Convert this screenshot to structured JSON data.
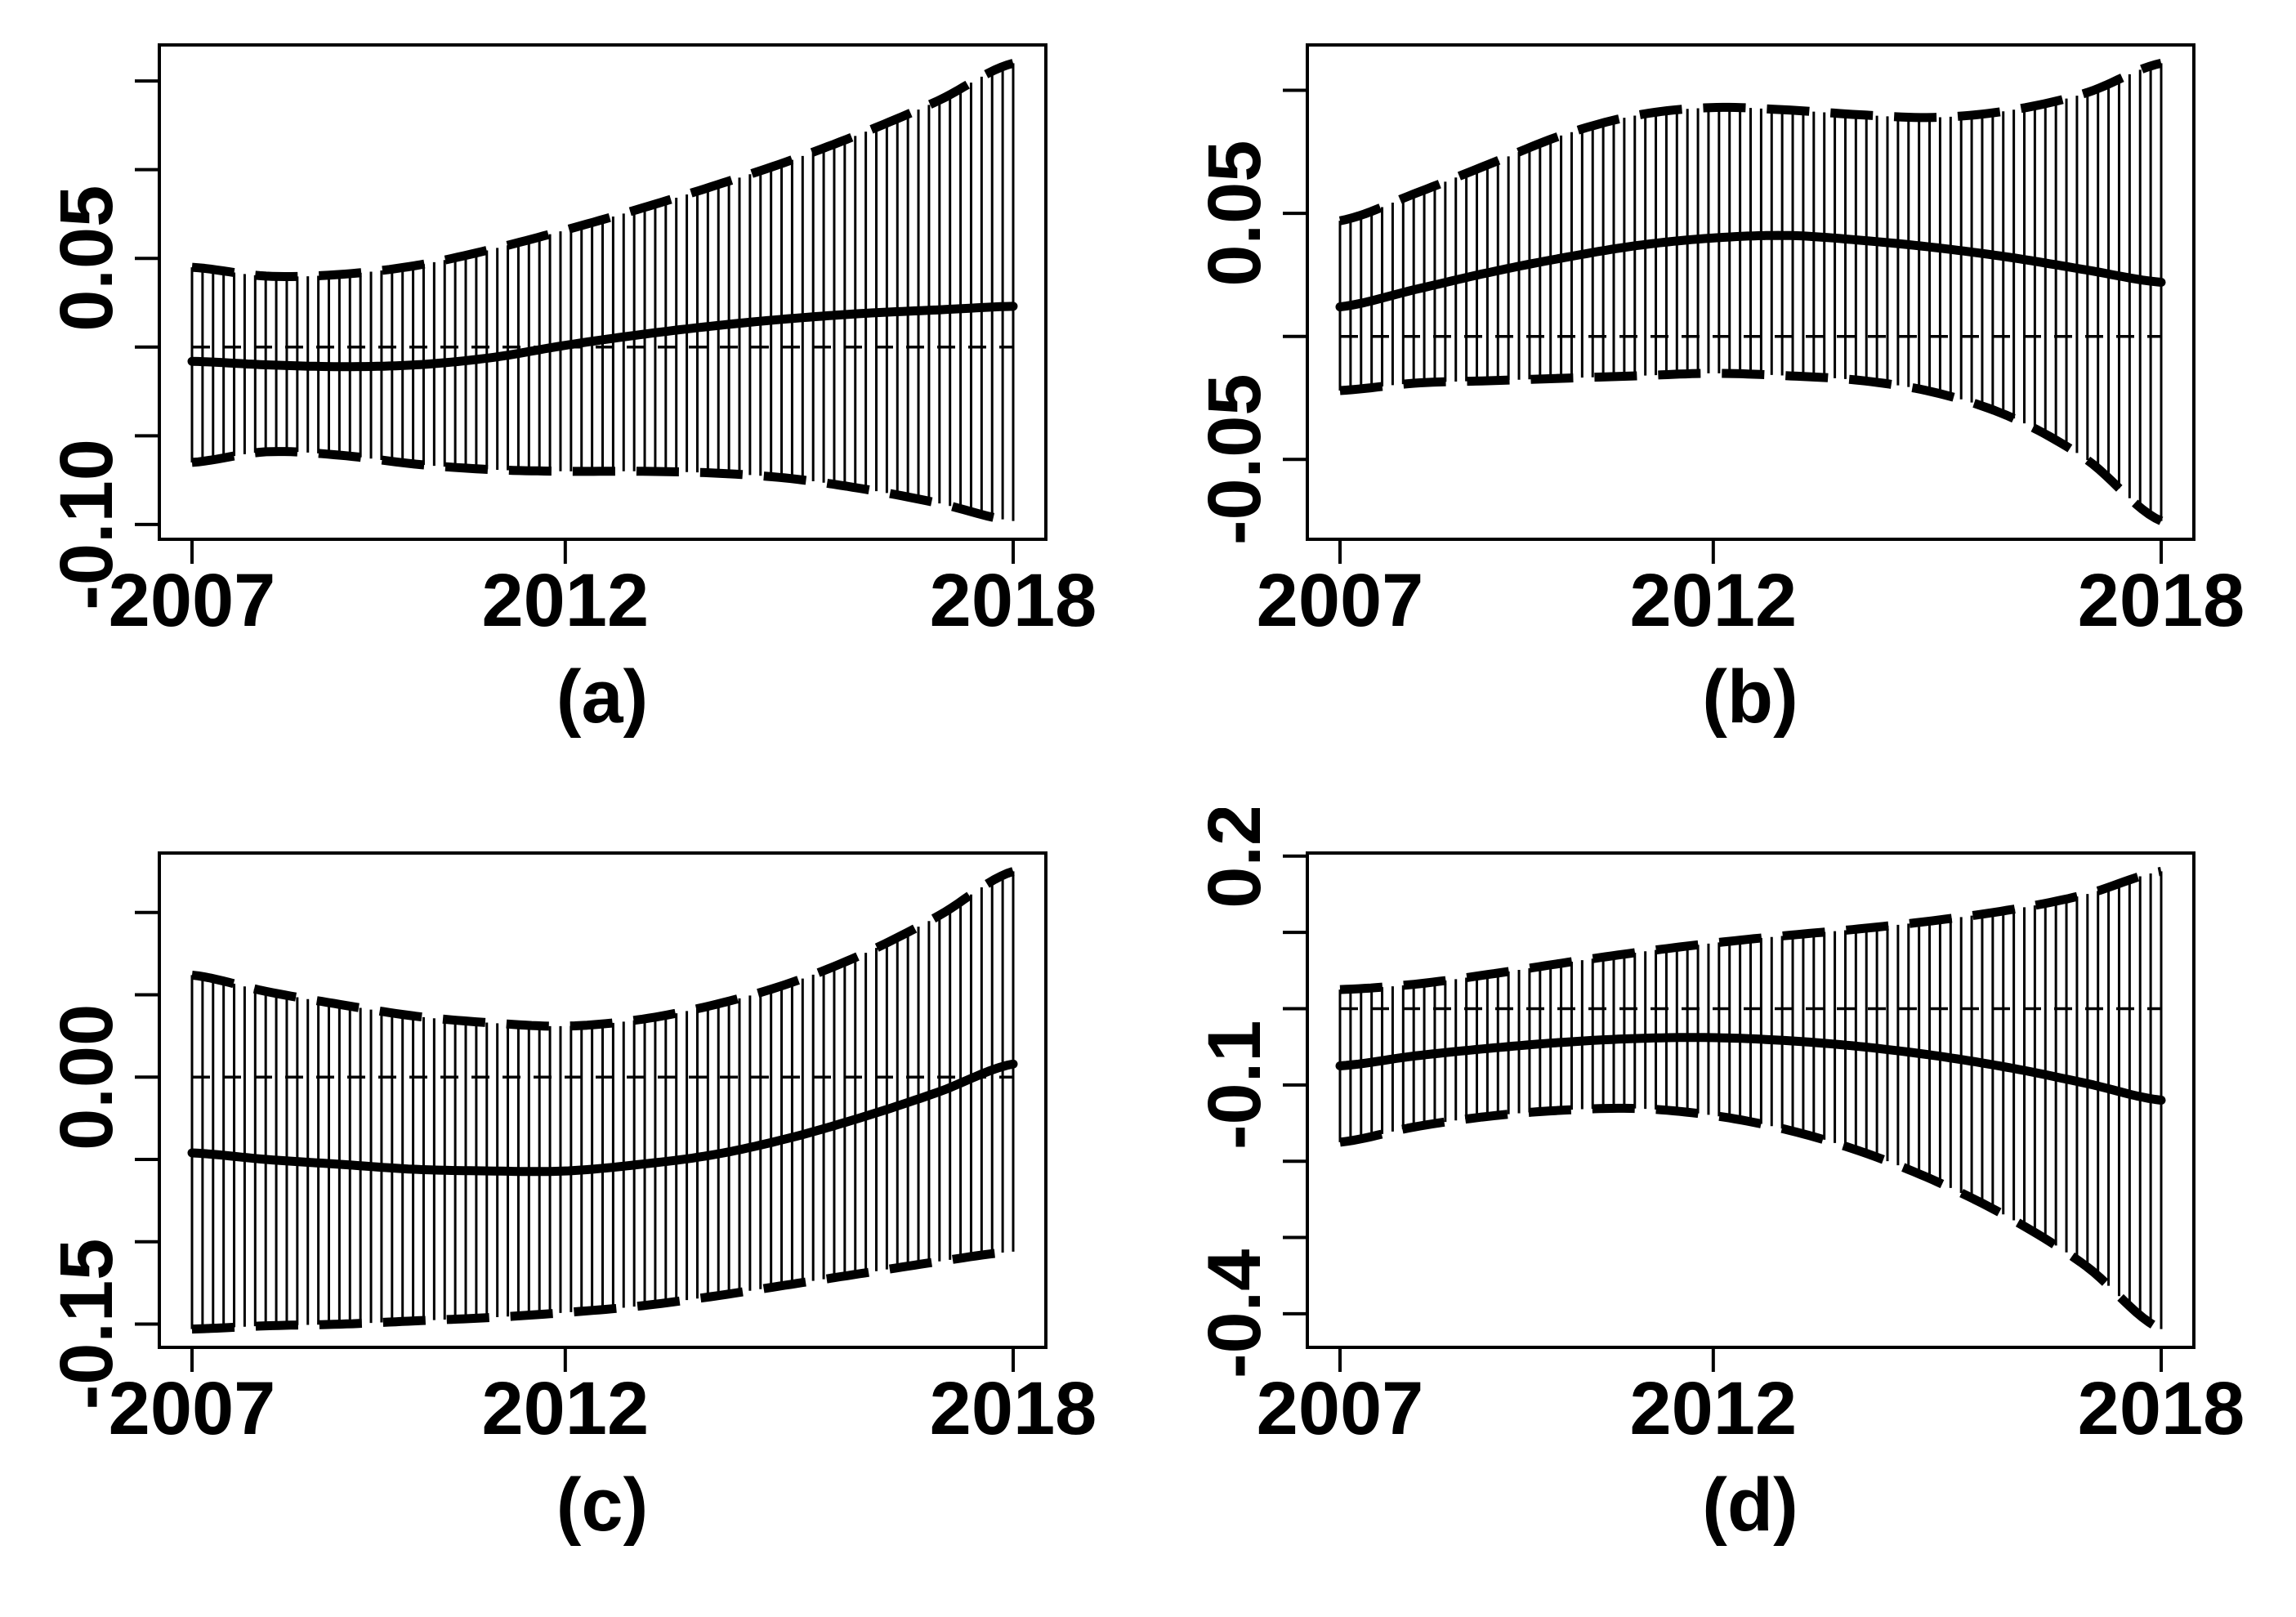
{
  "figure": {
    "background": "#ffffff",
    "ink": "#000000",
    "rows": 2,
    "columns": 2,
    "x_axis_years": [
      2007,
      2012,
      2018
    ]
  },
  "chart_data": [
    {
      "id": "a",
      "caption": "(a)",
      "type": "line",
      "x": [
        2007,
        2008,
        2009,
        2010,
        2011,
        2012,
        2013,
        2014,
        2015,
        2016,
        2017,
        2018
      ],
      "x_ticks": [
        {
          "year": 2007,
          "label": "2007"
        },
        {
          "year": 2012,
          "label": "2012"
        },
        {
          "year": 2018,
          "label": "2018"
        }
      ],
      "y_ticks": [
        0.15,
        0.1,
        0.05,
        0,
        -0.05,
        -0.1
      ],
      "y_tick_labels": [
        {
          "value": 0.05,
          "label": "0.05"
        },
        {
          "value": -0.1,
          "label": "-0.10"
        }
      ],
      "reference_y": 0,
      "series": [
        {
          "name": "estimate",
          "style": "solid-bold",
          "values": [
            -0.008,
            -0.01,
            -0.011,
            -0.01,
            -0.006,
            0.001,
            0.007,
            0.012,
            0.016,
            0.019,
            0.021,
            0.023
          ]
        },
        {
          "name": "upper-ci",
          "style": "dashed-bold",
          "values": [
            0.045,
            0.04,
            0.041,
            0.046,
            0.055,
            0.066,
            0.078,
            0.091,
            0.105,
            0.121,
            0.139,
            0.16
          ]
        },
        {
          "name": "lower-ci",
          "style": "dashed-bold",
          "values": [
            -0.065,
            -0.059,
            -0.061,
            -0.066,
            -0.069,
            -0.07,
            -0.07,
            -0.071,
            -0.074,
            -0.08,
            -0.088,
            -0.098
          ]
        }
      ]
    },
    {
      "id": "b",
      "caption": "(b)",
      "type": "line",
      "x": [
        2007,
        2008,
        2009,
        2010,
        2011,
        2012,
        2013,
        2014,
        2015,
        2016,
        2017,
        2018
      ],
      "x_ticks": [
        {
          "year": 2007,
          "label": "2007"
        },
        {
          "year": 2012,
          "label": "2012"
        },
        {
          "year": 2018,
          "label": "2018"
        }
      ],
      "y_ticks": [
        0.1,
        0.05,
        0,
        -0.05
      ],
      "y_tick_labels": [
        {
          "value": 0.05,
          "label": "0.05"
        },
        {
          "value": -0.05,
          "label": "-0.05"
        }
      ],
      "reference_y": 0,
      "series": [
        {
          "name": "estimate",
          "style": "solid-bold",
          "values": [
            0.012,
            0.019,
            0.026,
            0.032,
            0.037,
            0.04,
            0.041,
            0.039,
            0.036,
            0.032,
            0.027,
            0.022
          ]
        },
        {
          "name": "upper-ci",
          "style": "dashed-bold",
          "values": [
            0.047,
            0.058,
            0.07,
            0.082,
            0.09,
            0.093,
            0.092,
            0.09,
            0.089,
            0.092,
            0.099,
            0.111
          ]
        },
        {
          "name": "lower-ci",
          "style": "dashed-bold",
          "values": [
            -0.022,
            -0.019,
            -0.018,
            -0.017,
            -0.016,
            -0.015,
            -0.016,
            -0.018,
            -0.023,
            -0.033,
            -0.05,
            -0.075
          ]
        }
      ]
    },
    {
      "id": "c",
      "caption": "(c)",
      "type": "line",
      "x": [
        2007,
        2008,
        2009,
        2010,
        2011,
        2012,
        2013,
        2014,
        2015,
        2016,
        2017,
        2018
      ],
      "x_ticks": [
        {
          "year": 2007,
          "label": "2007"
        },
        {
          "year": 2012,
          "label": "2012"
        },
        {
          "year": 2018,
          "label": "2018"
        }
      ],
      "y_ticks": [
        0.1,
        0.05,
        0,
        -0.05,
        -0.1,
        -0.15
      ],
      "y_tick_labels": [
        {
          "value": 0,
          "label": "0.00"
        },
        {
          "value": -0.15,
          "label": "-0.15"
        }
      ],
      "reference_y": 0,
      "series": [
        {
          "name": "estimate",
          "style": "solid-bold",
          "values": [
            -0.046,
            -0.05,
            -0.053,
            -0.056,
            -0.057,
            -0.057,
            -0.053,
            -0.047,
            -0.037,
            -0.024,
            -0.009,
            0.008
          ]
        },
        {
          "name": "upper-ci",
          "style": "dashed-bold",
          "values": [
            0.062,
            0.052,
            0.044,
            0.037,
            0.033,
            0.031,
            0.035,
            0.044,
            0.057,
            0.075,
            0.098,
            0.125
          ]
        },
        {
          "name": "lower-ci",
          "style": "dashed-bold",
          "values": [
            -0.153,
            -0.151,
            -0.15,
            -0.148,
            -0.146,
            -0.143,
            -0.139,
            -0.133,
            -0.126,
            -0.119,
            -0.112,
            -0.106
          ]
        }
      ]
    },
    {
      "id": "d",
      "caption": "(d)",
      "type": "line",
      "x": [
        2007,
        2008,
        2009,
        2010,
        2011,
        2012,
        2013,
        2014,
        2015,
        2016,
        2017,
        2018
      ],
      "x_ticks": [
        {
          "year": 2007,
          "label": "2007"
        },
        {
          "year": 2012,
          "label": "2012"
        },
        {
          "year": 2018,
          "label": "2018"
        }
      ],
      "y_ticks": [
        0.2,
        0.1,
        0,
        -0.1,
        -0.2,
        -0.3,
        -0.4
      ],
      "y_tick_labels": [
        {
          "value": 0.2,
          "label": "0.2"
        },
        {
          "value": -0.1,
          "label": "-0.1"
        },
        {
          "value": -0.4,
          "label": "-0.4"
        }
      ],
      "reference_y": 0,
      "series": [
        {
          "name": "estimate",
          "style": "solid-bold",
          "values": [
            -0.075,
            -0.062,
            -0.052,
            -0.044,
            -0.039,
            -0.038,
            -0.042,
            -0.05,
            -0.062,
            -0.078,
            -0.098,
            -0.12
          ]
        },
        {
          "name": "upper-ci",
          "style": "dashed-bold",
          "values": [
            0.025,
            0.032,
            0.045,
            0.06,
            0.074,
            0.086,
            0.096,
            0.105,
            0.116,
            0.13,
            0.15,
            0.18
          ]
        },
        {
          "name": "lower-ci",
          "style": "dashed-bold",
          "values": [
            -0.175,
            -0.155,
            -0.141,
            -0.133,
            -0.131,
            -0.14,
            -0.159,
            -0.188,
            -0.227,
            -0.276,
            -0.338,
            -0.42
          ]
        }
      ]
    }
  ]
}
